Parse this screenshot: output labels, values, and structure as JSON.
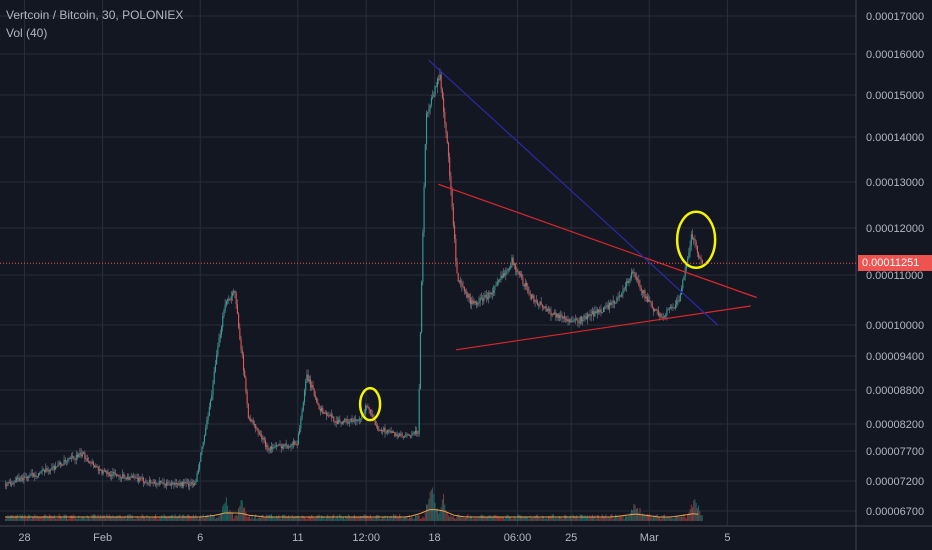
{
  "header": {
    "title": "Vertcoin / Bitcoin, 30, POLONIEX",
    "volume_label": "Vol (40)"
  },
  "colors": {
    "background": "#131722",
    "grid": "#2a2e39",
    "up": "#26a69a",
    "down": "#ef5350",
    "wick": "#9aa0ab",
    "trendline_red": "#e0262b",
    "trendline_blue": "#2a2aa8",
    "highlight_circle": "#f5f500",
    "price_line": "#ef5350",
    "volume_ma": "#e6a24c"
  },
  "chart_data": {
    "type": "candlestick",
    "title": "Vertcoin / Bitcoin, 30, POLONIEX",
    "indicator": "Vol (40)",
    "x_ticks": [
      "28",
      "Feb",
      "6",
      "11",
      "12:00",
      "18",
      "06:00",
      "25",
      "Mar",
      "5"
    ],
    "x_tick_days": [
      -3,
      1,
      6,
      11,
      14.5,
      18,
      22.25,
      25,
      29,
      33
    ],
    "xlim_days": [
      -4,
      38
    ],
    "y_ticks": [
      "0.00017000",
      "0.00016000",
      "0.00015000",
      "0.00014000",
      "0.00013000",
      "0.00012000",
      "0.00011000",
      "0.00010000",
      "0.00009400",
      "0.00008800",
      "0.00008200",
      "0.00007700",
      "0.00007200",
      "0.00006700"
    ],
    "current_price": "0.00011251",
    "price_path": [
      [
        -4,
        7.15e-05
      ],
      [
        -2,
        7.35e-05
      ],
      [
        0,
        7.65e-05
      ],
      [
        1,
        7.35e-05
      ],
      [
        2.5,
        7.25e-05
      ],
      [
        4,
        7.15e-05
      ],
      [
        5.8,
        7.15e-05
      ],
      [
        6.5,
        8.45e-05
      ],
      [
        7.3,
        0.0001045
      ],
      [
        7.8,
        0.0001065
      ],
      [
        8.5,
        8.35e-05
      ],
      [
        9.5,
        7.75e-05
      ],
      [
        11,
        7.85e-05
      ],
      [
        11.5,
        9.05e-05
      ],
      [
        12.2,
        8.45e-05
      ],
      [
        13,
        8.25e-05
      ],
      [
        14.2,
        8.25e-05
      ],
      [
        14.6,
        8.55e-05
      ],
      [
        15,
        8.15e-05
      ],
      [
        16.5,
        7.95e-05
      ],
      [
        17.2,
        8.05e-05
      ],
      [
        17.6,
        0.000145
      ],
      [
        18.3,
        0.000155
      ],
      [
        18.7,
        0.000138
      ],
      [
        19.2,
        0.000109
      ],
      [
        20,
        0.000104
      ],
      [
        21,
        0.0001065
      ],
      [
        22,
        0.000113
      ],
      [
        23,
        0.0001055
      ],
      [
        24,
        0.0001025
      ],
      [
        25.2,
        0.0001005
      ],
      [
        26.3,
        0.0001025
      ],
      [
        27.3,
        0.0001045
      ],
      [
        28.2,
        0.0001105
      ],
      [
        29,
        0.0001045
      ],
      [
        29.6,
        0.0001015
      ],
      [
        30.6,
        0.000105
      ],
      [
        31.2,
        0.0001185
      ],
      [
        31.7,
        0.0001125
      ]
    ],
    "volume_spikes": [
      [
        7.3,
        0.55
      ],
      [
        8.1,
        0.45
      ],
      [
        17.8,
        1.0
      ],
      [
        18.4,
        0.6
      ],
      [
        28.3,
        0.5
      ],
      [
        31.3,
        0.55
      ]
    ],
    "trendlines": [
      {
        "color": "red",
        "from": [
          18.2,
          0.0001295
        ],
        "to": [
          34.5,
          0.0001055
        ]
      },
      {
        "color": "red",
        "from": [
          19.1,
          9.52e-05
        ],
        "to": [
          34.2,
          0.0001038
        ]
      },
      {
        "color": "blue",
        "from": [
          17.7,
          0.0001585
        ],
        "to": [
          32.5,
          0.0001
        ]
      }
    ],
    "annotations": [
      {
        "shape": "ellipse",
        "color": "yellow",
        "center": [
          14.7,
          8.55e-05
        ]
      },
      {
        "shape": "ellipse",
        "color": "yellow",
        "center": [
          31.4,
          0.0001175
        ]
      }
    ]
  }
}
